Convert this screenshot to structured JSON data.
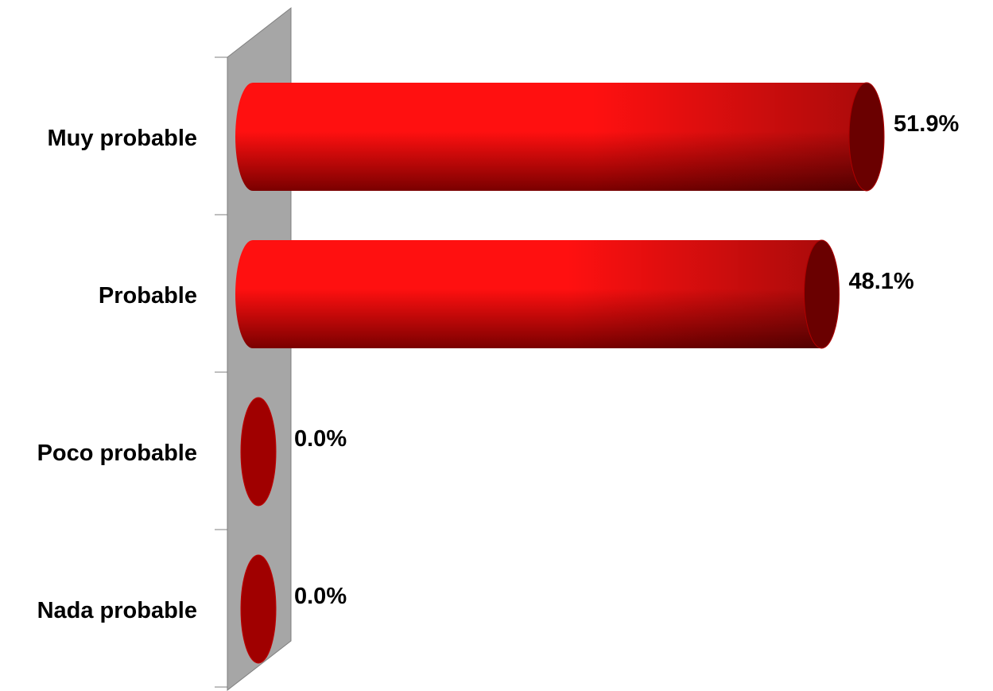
{
  "chart_data": {
    "type": "bar",
    "orientation": "horizontal",
    "style": "3d-cylinder",
    "categories": [
      "Muy probable",
      "Probable",
      "Poco probable",
      "Nada probable"
    ],
    "values": [
      51.9,
      48.1,
      0.0,
      0.0
    ],
    "value_labels": [
      "51.9%",
      "48.1%",
      "0.0%",
      "0.0%"
    ],
    "unit": "%",
    "xlim": [
      0,
      51.9
    ],
    "grid": false,
    "legend": "none",
    "colors": {
      "bar_light": "#ff1010",
      "bar_dark": "#7a0000",
      "bar_cap": "#6a0000",
      "zero_disc": "#a00000",
      "wall": "#a6a6a6",
      "wall_edge": "#7f7f7f",
      "tick": "#7f7f7f"
    }
  }
}
